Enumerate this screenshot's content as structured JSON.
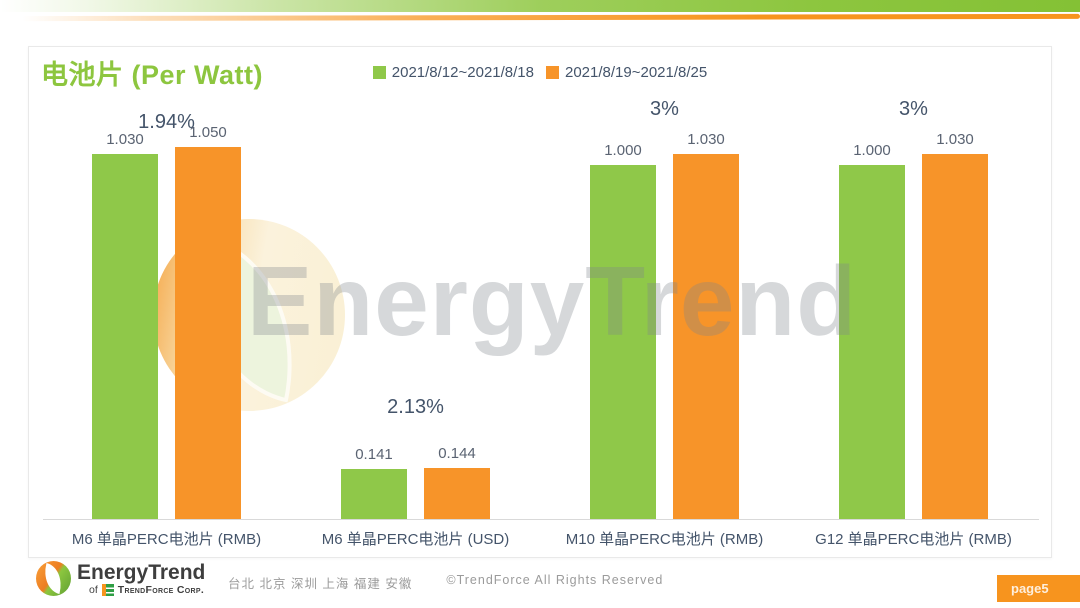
{
  "chart_data": {
    "type": "bar",
    "title": "电池片 (Per Watt)",
    "categories": [
      "M6 单晶PERC电池片 (RMB)",
      "M6 单晶PERC电池片 (USD)",
      "M10 单晶PERC电池片 (RMB)",
      "G12 单晶PERC电池片 (RMB)"
    ],
    "series": [
      {
        "name": "2021/8/12~2021/8/18",
        "color": "#8FC849",
        "values": [
          1.03,
          0.141,
          1.0,
          1.0
        ],
        "display_values": [
          "1.030",
          "0.141",
          "1.000",
          "1.000"
        ]
      },
      {
        "name": "2021/8/19~2021/8/25",
        "color": "#F79429",
        "values": [
          1.05,
          0.144,
          1.03,
          1.03
        ],
        "display_values": [
          "1.050",
          "0.144",
          "1.030",
          "1.030"
        ]
      }
    ],
    "change_labels": [
      "1.94%",
      "2.13%",
      "3%",
      "3%"
    ],
    "ylim": [
      0,
      1.06
    ],
    "grid": false,
    "value_axis_visible": false,
    "legend_position": "top-center"
  },
  "watermark": {
    "text": "EnergyTrend"
  },
  "footer": {
    "brand": "EnergyTrend",
    "of_label": "of",
    "company": "TrendForce Corp.",
    "cities": "台北 北京 深圳 上海 福建 安徽",
    "copyright": "©TrendForce All Rights Reserved",
    "page_label": "page5"
  },
  "colors": {
    "green": "#8DC63F",
    "orange": "#F7941E",
    "text_dark": "#44546A"
  }
}
